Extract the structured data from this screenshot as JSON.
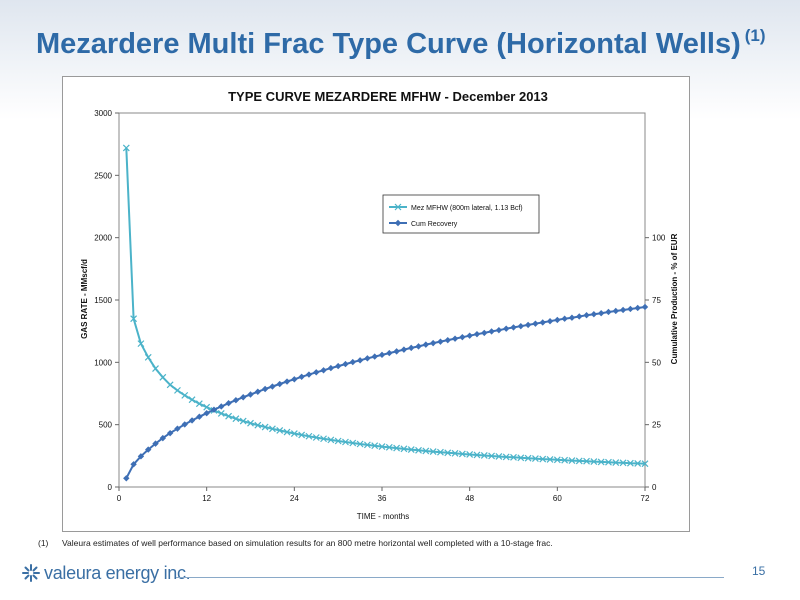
{
  "slide": {
    "title": "Mezardere Multi Frac Type Curve (Horizontal Wells)",
    "title_sup": "(1)",
    "footnote_num": "(1)",
    "footnote_text": "Valeura estimates of well performance based on simulation results for an 800 metre horizontal well completed with a 10-stage frac.",
    "brand": "valeura energy inc.",
    "page_number": "15"
  },
  "colors": {
    "title": "#2e6aa7",
    "gas_rate": "#4bb3c9",
    "cum_recovery": "#3e6fb5",
    "brand": "#3a6fa4"
  },
  "chart_data": {
    "type": "line",
    "title": "TYPE CURVE MEZARDERE MFHW - December 2013",
    "xlabel": "TIME - months",
    "ylabel": "GAS RATE - MMscf/d",
    "y2label": "Cumulative Production - % of EUR",
    "xlim": [
      0,
      72
    ],
    "ylim": [
      0,
      3000
    ],
    "y2lim": [
      0,
      150
    ],
    "xticks": [
      0,
      12,
      24,
      36,
      48,
      60,
      72
    ],
    "yticks": [
      0,
      500,
      1000,
      1500,
      2000,
      2500,
      3000
    ],
    "y2ticks": [
      0,
      25,
      50,
      75,
      100
    ],
    "grid": false,
    "legend_position": "upper-right",
    "x": [
      1,
      2,
      3,
      4,
      5,
      6,
      7,
      8,
      9,
      10,
      11,
      12,
      13,
      14,
      15,
      16,
      17,
      18,
      19,
      20,
      21,
      22,
      23,
      24,
      25,
      26,
      27,
      28,
      29,
      30,
      31,
      32,
      33,
      34,
      35,
      36,
      37,
      38,
      39,
      40,
      41,
      42,
      43,
      44,
      45,
      46,
      47,
      48,
      49,
      50,
      51,
      52,
      53,
      54,
      55,
      56,
      57,
      58,
      59,
      60,
      61,
      62,
      63,
      64,
      65,
      66,
      67,
      68,
      69,
      70,
      71,
      72
    ],
    "series": [
      {
        "name": "Mez MFHW (800m lateral, 1.13 Bcf)",
        "axis": "left",
        "marker": "x",
        "values": [
          2720,
          1350,
          1150,
          1040,
          950,
          880,
          820,
          775,
          735,
          700,
          668,
          640,
          614,
          590,
          568,
          548,
          529,
          512,
          496,
          481,
          467,
          454,
          441,
          429,
          418,
          407,
          397,
          387,
          378,
          369,
          361,
          353,
          345,
          338,
          331,
          324,
          318,
          312,
          306,
          300,
          294,
          289,
          284,
          279,
          274,
          270,
          265,
          261,
          257,
          253,
          249,
          245,
          241,
          238,
          234,
          231,
          228,
          224,
          221,
          218,
          215,
          212,
          209,
          207,
          204,
          201,
          199,
          196,
          194,
          191,
          189,
          187
        ]
      },
      {
        "name": "Cum Recovery",
        "axis": "right",
        "marker": "diamond",
        "values": [
          3.5,
          9.1,
          12.3,
          15,
          17.4,
          19.6,
          21.6,
          23.4,
          25.1,
          26.7,
          28.2,
          29.6,
          31,
          32.3,
          33.6,
          34.8,
          36,
          37.1,
          38.2,
          39.3,
          40.3,
          41.3,
          42.3,
          43.2,
          44.2,
          45.1,
          46,
          46.8,
          47.7,
          48.5,
          49.3,
          50.1,
          50.8,
          51.6,
          52.3,
          53,
          53.7,
          54.4,
          55.1,
          55.8,
          56.4,
          57.1,
          57.7,
          58.3,
          58.9,
          59.5,
          60.1,
          60.7,
          61.3,
          61.8,
          62.4,
          62.9,
          63.5,
          64,
          64.5,
          65,
          65.5,
          66,
          66.5,
          67,
          67.5,
          67.9,
          68.4,
          68.9,
          69.3,
          69.7,
          70.2,
          70.6,
          71,
          71.4,
          71.8,
          72.2
        ]
      }
    ]
  }
}
